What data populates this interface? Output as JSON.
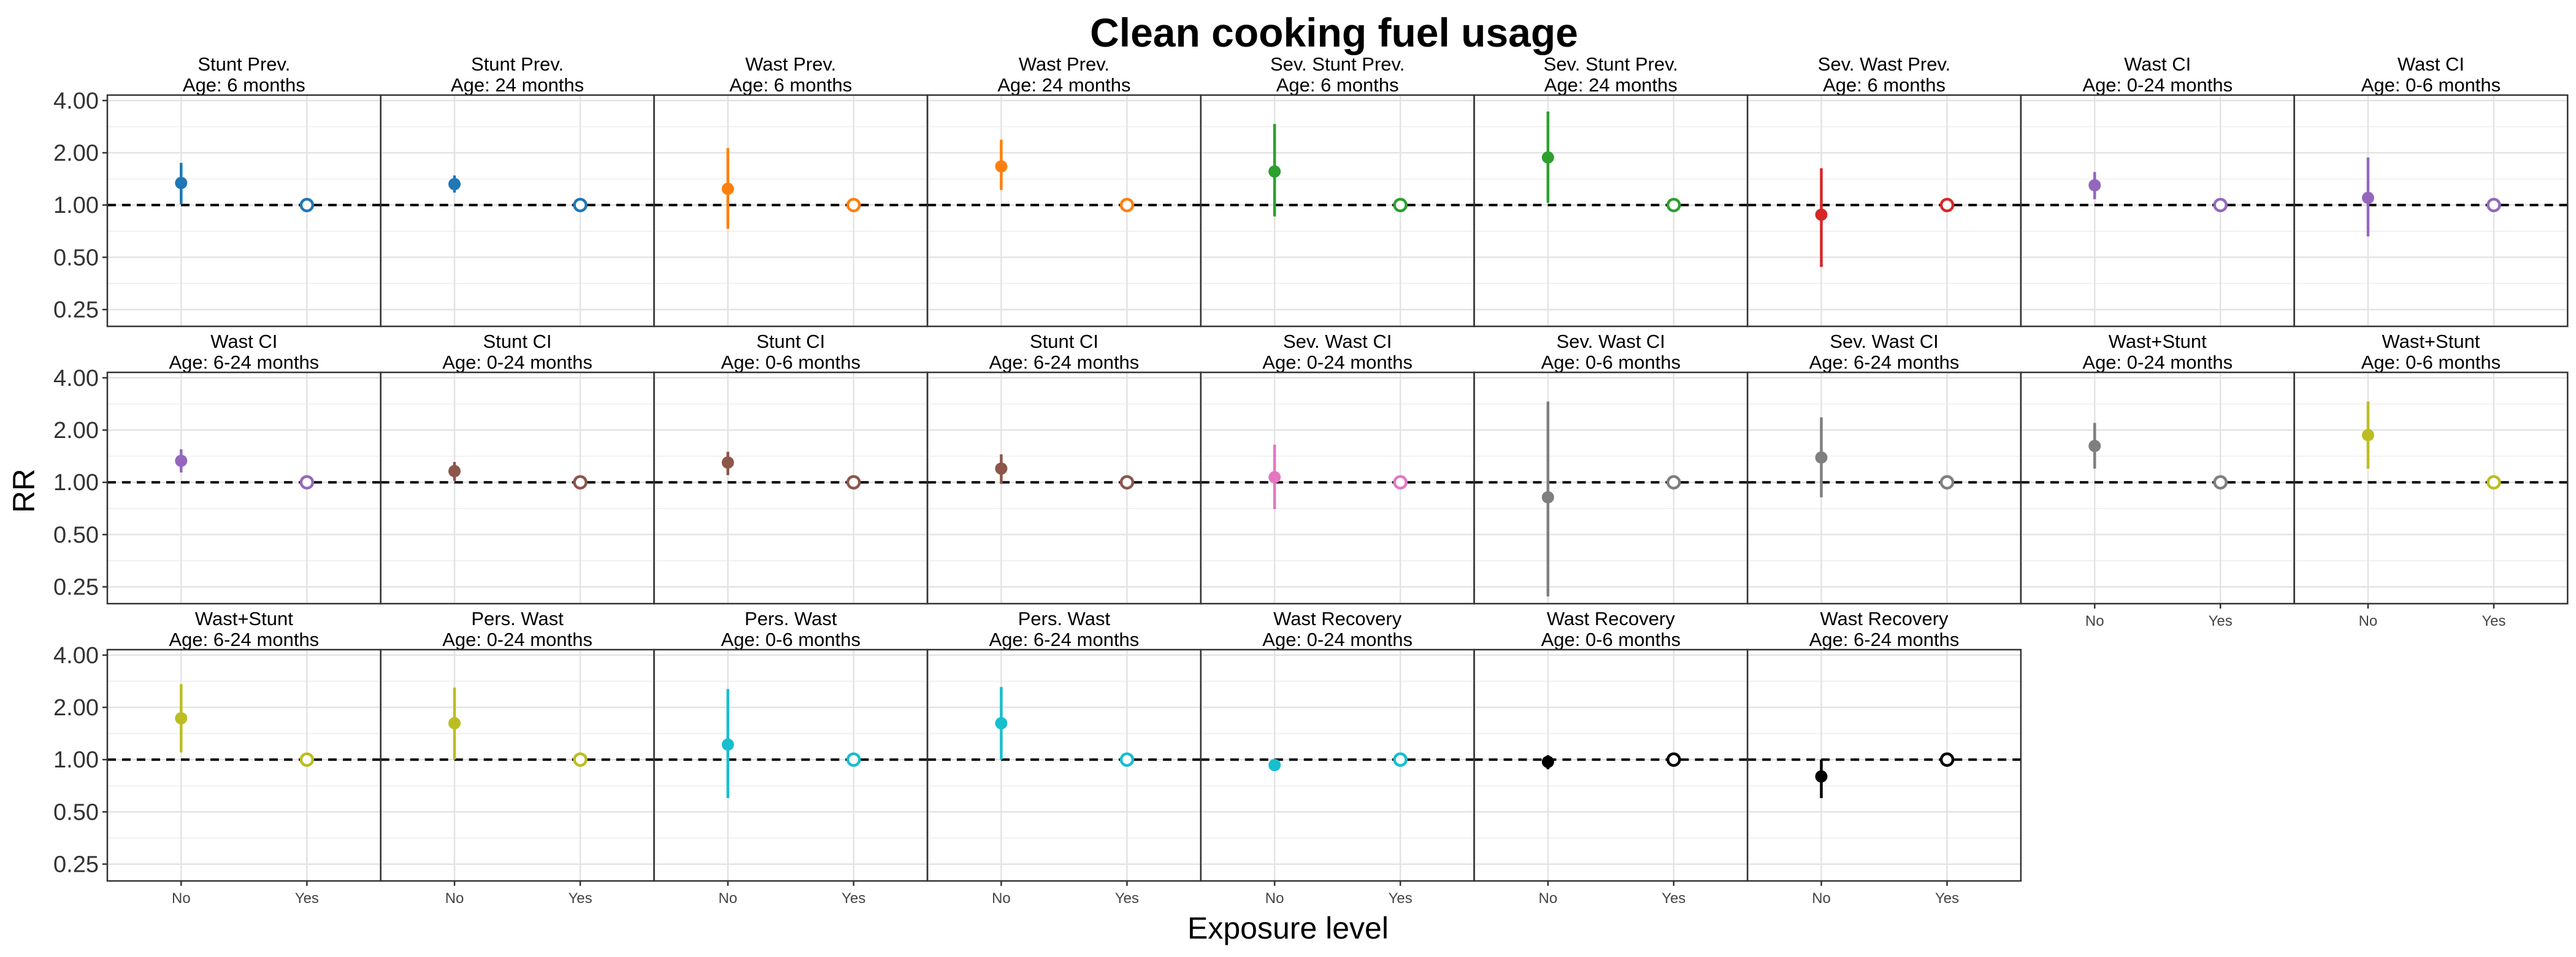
{
  "chart_data": {
    "type": "scatter",
    "title": "Clean cooking fuel usage",
    "xlabel": "Exposure level",
    "ylabel": "RR",
    "y_scale": "log",
    "ylim": [
      0.2,
      4.3
    ],
    "y_ticks": [
      0.25,
      0.5,
      1,
      2,
      4
    ],
    "y_tick_labels": [
      "0.25",
      "0.50",
      "1.00",
      "2.00",
      "4.00"
    ],
    "x_categories": [
      "No",
      "Yes"
    ],
    "reference_line": 1.0,
    "grid": true,
    "legend": "none",
    "panels": [
      {
        "outcome": "Stunt Prev.",
        "age": "Age: 6 months",
        "color": "#1F77B4",
        "rr": 1.34,
        "lower": 1.01,
        "upper": 1.75
      },
      {
        "outcome": "Stunt Prev.",
        "age": "Age: 24 months",
        "color": "#1F77B4",
        "rr": 1.32,
        "lower": 1.18,
        "upper": 1.48
      },
      {
        "outcome": "Wast Prev.",
        "age": "Age: 6 months",
        "color": "#FF7F0E",
        "rr": 1.24,
        "lower": 0.73,
        "upper": 2.13
      },
      {
        "outcome": "Wast Prev.",
        "age": "Age: 24 months",
        "color": "#FF7F0E",
        "rr": 1.67,
        "lower": 1.22,
        "upper": 2.38
      },
      {
        "outcome": "Sev. Stunt Prev.",
        "age": "Age: 6 months",
        "color": "#2CA02C",
        "rr": 1.56,
        "lower": 0.86,
        "upper": 2.93
      },
      {
        "outcome": "Sev. Stunt Prev.",
        "age": "Age: 24 months",
        "color": "#2CA02C",
        "rr": 1.88,
        "lower": 1.03,
        "upper": 3.46
      },
      {
        "outcome": "Sev. Wast Prev.",
        "age": "Age: 6 months",
        "color": "#D62728",
        "rr": 0.88,
        "lower": 0.44,
        "upper": 1.63
      },
      {
        "outcome": "Wast CI",
        "age": "Age: 0-24 months",
        "color": "#9467BD",
        "rr": 1.3,
        "lower": 1.08,
        "upper": 1.55
      },
      {
        "outcome": "Wast CI",
        "age": "Age: 0-6 months",
        "color": "#9467BD",
        "rr": 1.1,
        "lower": 0.66,
        "upper": 1.88
      },
      {
        "outcome": "Wast CI",
        "age": "Age: 6-24 months",
        "color": "#9467BD",
        "rr": 1.33,
        "lower": 1.14,
        "upper": 1.55
      },
      {
        "outcome": "Stunt CI",
        "age": "Age: 0-24 months",
        "color": "#8C564B",
        "rr": 1.16,
        "lower": 1.02,
        "upper": 1.31
      },
      {
        "outcome": "Stunt CI",
        "age": "Age: 0-6 months",
        "color": "#8C564B",
        "rr": 1.3,
        "lower": 1.1,
        "upper": 1.5
      },
      {
        "outcome": "Stunt CI",
        "age": "Age: 6-24 months",
        "color": "#8C564B",
        "rr": 1.2,
        "lower": 0.98,
        "upper": 1.45
      },
      {
        "outcome": "Sev. Wast CI",
        "age": "Age: 0-24 months",
        "color": "#E377C2",
        "rr": 1.07,
        "lower": 0.7,
        "upper": 1.65
      },
      {
        "outcome": "Sev. Wast CI",
        "age": "Age: 0-6 months",
        "color": "#7F7F7F",
        "rr": 0.82,
        "lower": 0.22,
        "upper": 2.92
      },
      {
        "outcome": "Sev. Wast CI",
        "age": "Age: 6-24 months",
        "color": "#7F7F7F",
        "rr": 1.39,
        "lower": 0.82,
        "upper": 2.37
      },
      {
        "outcome": "Wast+Stunt",
        "age": "Age: 0-24 months",
        "color": "#7F7F7F",
        "rr": 1.62,
        "lower": 1.2,
        "upper": 2.2
      },
      {
        "outcome": "Wast+Stunt",
        "age": "Age: 0-6 months",
        "color": "#BCBD22",
        "rr": 1.87,
        "lower": 1.2,
        "upper": 2.92
      },
      {
        "outcome": "Wast+Stunt",
        "age": "Age: 6-24 months",
        "color": "#BCBD22",
        "rr": 1.73,
        "lower": 1.1,
        "upper": 2.72
      },
      {
        "outcome": "Pers. Wast",
        "age": "Age: 0-24 months",
        "color": "#BCBD22",
        "rr": 1.62,
        "lower": 1.0,
        "upper": 2.6
      },
      {
        "outcome": "Pers. Wast",
        "age": "Age: 0-6 months",
        "color": "#17BECF",
        "rr": 1.22,
        "lower": 0.6,
        "upper": 2.55
      },
      {
        "outcome": "Pers. Wast",
        "age": "Age: 6-24 months",
        "color": "#17BECF",
        "rr": 1.62,
        "lower": 1.0,
        "upper": 2.62
      },
      {
        "outcome": "Wast Recovery",
        "age": "Age: 0-24 months",
        "color": "#17BECF",
        "rr": 0.93,
        "lower": 0.86,
        "upper": 1.0
      },
      {
        "outcome": "Wast Recovery",
        "age": "Age: 0-6 months",
        "color": "#000000",
        "rr": 0.97,
        "lower": 0.88,
        "upper": 1.06
      },
      {
        "outcome": "Wast Recovery",
        "age": "Age: 6-24 months",
        "color": "#000000",
        "rr": 0.8,
        "lower": 0.6,
        "upper": 1.0
      }
    ]
  }
}
